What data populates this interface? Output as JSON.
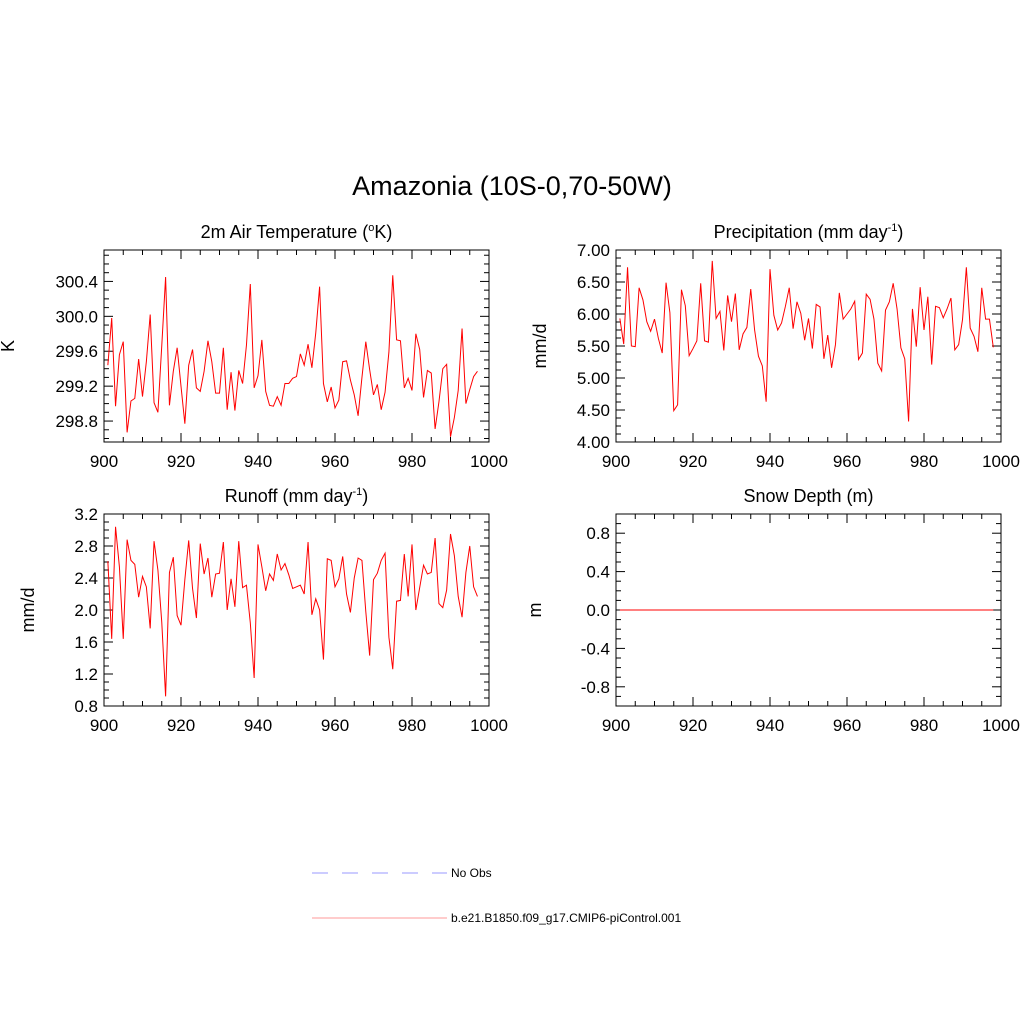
{
  "figure_title": "Amazonia (10S-0,70-50W)",
  "chart_data": [
    {
      "id": "temp",
      "type": "line",
      "title": "2m Air Temperature (",
      "title_sup": "o",
      "title_tail": "K)",
      "xlabel": "",
      "ylabel": "K",
      "xlim": [
        900,
        1000
      ],
      "ylim": [
        298.56,
        300.76
      ],
      "xticks": [
        900,
        920,
        940,
        960,
        980,
        1000
      ],
      "yticks": [
        298.8,
        299.2,
        299.6,
        300.0,
        300.4
      ],
      "ytick_labels": [
        "298.8",
        "299.2",
        "299.6",
        "300.0",
        "300.4"
      ],
      "x_start": 901,
      "series": [
        {
          "name": "b.e21.B1850.f09_g17.CMIP6-piControl.001",
          "color": "#ff0000",
          "values": [
            299.44,
            299.98,
            298.97,
            299.56,
            299.71,
            298.67,
            299.03,
            299.06,
            299.51,
            299.08,
            299.48,
            300.02,
            299.01,
            298.9,
            299.66,
            300.45,
            298.98,
            299.37,
            299.64,
            299.2,
            298.77,
            299.44,
            299.62,
            299.18,
            299.14,
            299.37,
            299.72,
            299.48,
            299.12,
            299.12,
            299.64,
            298.93,
            299.36,
            298.92,
            299.38,
            299.23,
            299.67,
            300.37,
            299.18,
            299.32,
            299.73,
            299.14,
            298.98,
            298.97,
            299.08,
            298.98,
            299.23,
            299.23,
            299.29,
            299.31,
            299.57,
            299.44,
            299.68,
            299.41,
            299.81,
            300.34,
            299.23,
            299.02,
            299.19,
            298.95,
            299.04,
            299.48,
            299.49,
            299.27,
            299.1,
            298.86,
            299.3,
            299.71,
            299.39,
            299.1,
            299.22,
            298.93,
            299.13,
            299.59,
            300.47,
            299.73,
            299.72,
            299.18,
            299.29,
            299.15,
            299.8,
            299.62,
            299.07,
            299.38,
            299.35,
            298.71,
            299.02,
            299.4,
            299.45,
            298.62,
            298.84,
            299.15,
            299.86,
            299.0,
            299.16,
            299.31,
            299.37
          ]
        }
      ]
    },
    {
      "id": "precip",
      "type": "line",
      "title": "Precipitation (mm day",
      "title_sup": "-1",
      "title_tail": ")",
      "xlabel": "",
      "ylabel": "mm/d",
      "xlim": [
        900,
        1000
      ],
      "ylim": [
        4.0,
        7.0
      ],
      "xticks": [
        900,
        920,
        940,
        960,
        980,
        1000
      ],
      "yticks": [
        4.0,
        4.5,
        5.0,
        5.5,
        6.0,
        6.5,
        7.0
      ],
      "ytick_labels": [
        "4.00",
        "4.50",
        "5.00",
        "5.50",
        "6.00",
        "6.50",
        "7.00"
      ],
      "x_start": 901,
      "series": [
        {
          "name": "b.e21.B1850.f09_g17.CMIP6-piControl.001",
          "color": "#ff0000",
          "values": [
            5.93,
            5.53,
            6.73,
            5.5,
            5.49,
            6.41,
            6.22,
            5.88,
            5.73,
            5.92,
            5.62,
            5.39,
            6.49,
            6.02,
            4.49,
            4.58,
            6.38,
            6.13,
            5.35,
            5.46,
            5.58,
            6.48,
            5.58,
            5.56,
            6.83,
            5.93,
            6.04,
            5.43,
            6.29,
            5.88,
            6.32,
            5.44,
            5.69,
            5.79,
            6.39,
            5.75,
            5.34,
            5.19,
            4.63,
            6.7,
            5.98,
            5.75,
            5.86,
            6.12,
            6.41,
            5.77,
            6.19,
            6.01,
            5.59,
            5.93,
            5.46,
            6.15,
            6.11,
            5.3,
            5.67,
            5.16,
            5.52,
            6.33,
            5.92,
            6.0,
            6.08,
            6.2,
            5.29,
            5.39,
            6.31,
            6.23,
            5.92,
            5.23,
            5.11,
            6.06,
            6.19,
            6.48,
            6.08,
            5.47,
            5.3,
            4.32,
            6.08,
            5.49,
            6.42,
            5.75,
            6.27,
            5.21,
            6.12,
            6.1,
            5.94,
            6.08,
            6.25,
            5.44,
            5.52,
            5.91,
            6.73,
            5.78,
            5.65,
            5.41,
            6.41,
            5.92,
            5.92,
            5.48
          ]
        }
      ]
    },
    {
      "id": "runoff",
      "type": "line",
      "title": "Runoff (mm day",
      "title_sup": "-1",
      "title_tail": ")",
      "xlabel": "",
      "ylabel": "mm/d",
      "xlim": [
        900,
        1000
      ],
      "ylim": [
        0.8,
        3.2
      ],
      "xticks": [
        900,
        920,
        940,
        960,
        980,
        1000
      ],
      "yticks": [
        0.8,
        1.2,
        1.6,
        2.0,
        2.4,
        2.8,
        3.2
      ],
      "ytick_labels": [
        "0.8",
        "1.2",
        "1.6",
        "2.0",
        "2.4",
        "2.8",
        "3.2"
      ],
      "x_start": 901,
      "series": [
        {
          "name": "b.e21.B1850.f09_g17.CMIP6-piControl.001",
          "color": "#ff0000",
          "values": [
            2.61,
            1.64,
            3.04,
            2.54,
            1.64,
            2.88,
            2.62,
            2.57,
            2.16,
            2.42,
            2.29,
            1.77,
            2.86,
            2.5,
            1.85,
            0.92,
            2.47,
            2.66,
            1.93,
            1.81,
            2.38,
            2.87,
            2.27,
            1.9,
            2.83,
            2.45,
            2.65,
            2.16,
            2.45,
            2.46,
            2.85,
            2.0,
            2.39,
            2.04,
            2.86,
            2.28,
            2.31,
            1.84,
            1.15,
            2.82,
            2.54,
            2.24,
            2.45,
            2.37,
            2.7,
            2.5,
            2.58,
            2.44,
            2.27,
            2.29,
            2.31,
            2.2,
            2.85,
            1.94,
            2.14,
            2.0,
            1.38,
            2.64,
            2.62,
            2.29,
            2.39,
            2.67,
            2.2,
            1.97,
            2.4,
            2.65,
            2.62,
            1.98,
            1.43,
            2.38,
            2.46,
            2.62,
            2.71,
            1.66,
            1.26,
            2.11,
            2.12,
            2.7,
            2.17,
            2.82,
            2.0,
            2.28,
            2.56,
            2.45,
            2.47,
            2.9,
            2.08,
            2.03,
            2.25,
            2.95,
            2.68,
            2.17,
            1.91,
            2.47,
            2.8,
            2.29,
            2.17
          ]
        }
      ]
    },
    {
      "id": "snow",
      "type": "line",
      "title": "Snow Depth (m)",
      "title_sup": "",
      "title_tail": "",
      "xlabel": "",
      "ylabel": "m",
      "xlim": [
        900,
        1000
      ],
      "ylim": [
        -1.0,
        1.0
      ],
      "xticks": [
        900,
        920,
        940,
        960,
        980,
        1000
      ],
      "yticks": [
        -0.8,
        -0.4,
        0.0,
        0.4,
        0.8
      ],
      "ytick_labels": [
        "-0.8",
        "-0.4",
        "0.0",
        "0.4",
        "0.8"
      ],
      "x_start": 901,
      "series": [
        {
          "name": "b.e21.B1850.f09_g17.CMIP6-piControl.001",
          "color": "#ff0000",
          "values": [
            0,
            0,
            0,
            0,
            0,
            0,
            0,
            0,
            0,
            0,
            0,
            0,
            0,
            0,
            0,
            0,
            0,
            0,
            0,
            0,
            0,
            0,
            0,
            0,
            0,
            0,
            0,
            0,
            0,
            0,
            0,
            0,
            0,
            0,
            0,
            0,
            0,
            0,
            0,
            0,
            0,
            0,
            0,
            0,
            0,
            0,
            0,
            0,
            0,
            0,
            0,
            0,
            0,
            0,
            0,
            0,
            0,
            0,
            0,
            0,
            0,
            0,
            0,
            0,
            0,
            0,
            0,
            0,
            0,
            0,
            0,
            0,
            0,
            0,
            0,
            0,
            0,
            0,
            0,
            0,
            0,
            0,
            0,
            0,
            0,
            0,
            0,
            0,
            0,
            0,
            0,
            0,
            0,
            0,
            0,
            0,
            0,
            0
          ]
        }
      ]
    }
  ],
  "legend": [
    {
      "label": "No Obs",
      "color": "#9999ff",
      "style": "dashed"
    },
    {
      "label": "b.e21.B1850.f09_g17.CMIP6-piControl.001",
      "color": "#ff9999",
      "style": "solid"
    }
  ]
}
